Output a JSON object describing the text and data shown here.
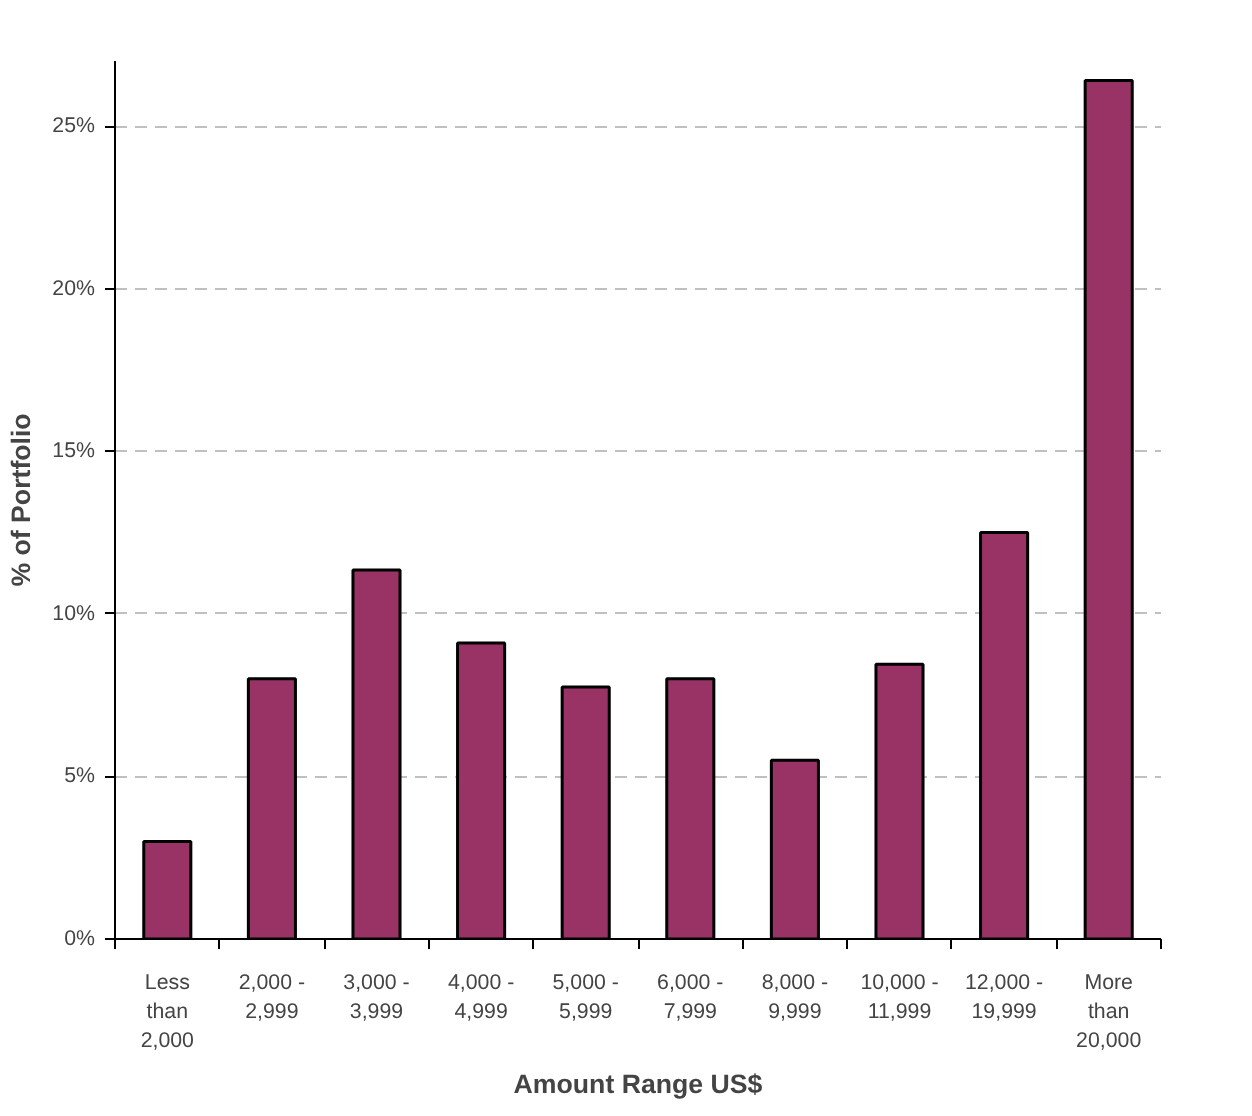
{
  "chart_data": {
    "type": "bar",
    "xlabel": "Amount Range US$",
    "ylabel": "% of Portfolio",
    "categories": [
      "Less than 2,000",
      "2,000 - 2,999",
      "3,000 - 3,999",
      "4,000 - 4,999",
      "5,000 - 5,999",
      "6,000 - 7,999",
      "8,000 - 9,999",
      "10,000 - 11,999",
      "12,000 - 19,999",
      "More than 20,000"
    ],
    "values": [
      3.0,
      8.0,
      11.35,
      9.1,
      7.75,
      8.0,
      5.5,
      8.45,
      12.5,
      26.4
    ],
    "color": "#993366",
    "ylim": [
      0,
      27
    ],
    "yticks": [
      {
        "value": 0,
        "label": "0%"
      },
      {
        "value": 5,
        "label": "5%"
      },
      {
        "value": 10,
        "label": "10%"
      },
      {
        "value": 15,
        "label": "15%"
      },
      {
        "value": 20,
        "label": "20%"
      },
      {
        "value": 25,
        "label": "25%"
      }
    ],
    "grid": "y"
  }
}
